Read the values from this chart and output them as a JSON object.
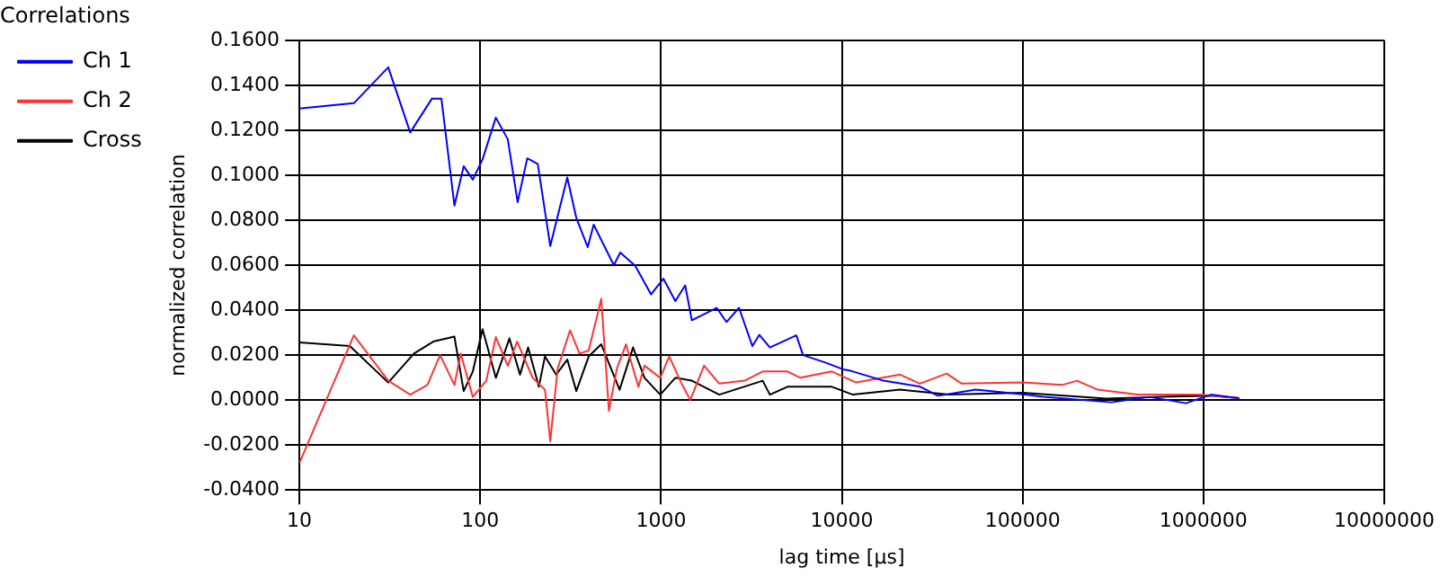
{
  "chart_data": {
    "type": "line",
    "title": "Correlations",
    "xlabel": "lag time [µs]",
    "ylabel": "normalized correlation",
    "log": "x",
    "xlim": [
      10,
      10000000
    ],
    "xticks": [
      10,
      100,
      1000,
      10000,
      100000,
      1000000,
      10000000
    ],
    "ylim": [
      -0.04,
      0.16
    ],
    "yticks": [
      {
        "value": -0.04,
        "label": "-0.0400"
      },
      {
        "value": -0.02,
        "label": "-0.0200"
      },
      {
        "value": 0,
        "label": "0.0000"
      },
      {
        "value": 0.02,
        "label": "0.0200"
      },
      {
        "value": 0.04,
        "label": "0.0400"
      },
      {
        "value": 0.06,
        "label": "0.0600"
      },
      {
        "value": 0.08,
        "label": "0.0800"
      },
      {
        "value": 0.1,
        "label": "0.1000"
      },
      {
        "value": 0.12,
        "label": "0.1200"
      },
      {
        "value": 0.14,
        "label": "0.1400"
      },
      {
        "value": 0.16,
        "label": "0.1600"
      }
    ],
    "grid": true,
    "legend": "top left",
    "marker": "none",
    "line_style": "solid",
    "series": [
      {
        "name": "Ch 1",
        "color": "#0000ff",
        "x": [
          10,
          20,
          31,
          41,
          54,
          61,
          72,
          81,
          91,
          103,
          122,
          142,
          161,
          182,
          208,
          244,
          303,
          340,
          393,
          424,
          548,
          595,
          720,
          880,
          1030,
          1200,
          1360,
          1480,
          2030,
          2300,
          2700,
          3200,
          3500,
          4000,
          5600,
          6100,
          8100,
          10300,
          11200,
          17000,
          27000,
          34000,
          55000,
          103000,
          130000,
          310000,
          500000,
          800000,
          1100000,
          1580000
        ],
        "values": [
          0.1296,
          0.132,
          0.148,
          0.119,
          0.134,
          0.134,
          0.0865,
          0.104,
          0.098,
          0.107,
          0.1256,
          0.116,
          0.088,
          0.1075,
          0.105,
          0.0685,
          0.099,
          0.081,
          0.068,
          0.078,
          0.06,
          0.0656,
          0.0597,
          0.047,
          0.054,
          0.044,
          0.051,
          0.0355,
          0.041,
          0.0347,
          0.041,
          0.024,
          0.029,
          0.0234,
          0.0288,
          0.02,
          0.0167,
          0.0135,
          0.013,
          0.0086,
          0.006,
          0.0019,
          0.0046,
          0.0024,
          0.0014,
          -0.001,
          0.0014,
          -0.0014,
          0.0024,
          0.0008
        ]
      },
      {
        "name": "Ch 2",
        "color": "#ff3333",
        "x": [
          10,
          20,
          31,
          41,
          51,
          60,
          72,
          78,
          91,
          108,
          122,
          142,
          160,
          195,
          228,
          244,
          268,
          314,
          354,
          398,
          467,
          515,
          570,
          640,
          750,
          810,
          990,
          1110,
          1300,
          1450,
          1730,
          2100,
          2900,
          3650,
          5000,
          5900,
          8800,
          12000,
          21000,
          27000,
          38000,
          46000,
          100000,
          165000,
          200000,
          260000,
          430000,
          950000,
          1580000
        ],
        "values": [
          -0.028,
          0.0288,
          0.0086,
          0.0024,
          0.0067,
          0.02,
          0.0067,
          0.0207,
          0.0014,
          0.0086,
          0.028,
          0.0153,
          0.026,
          0.0099,
          0.0046,
          -0.0183,
          0.014,
          0.031,
          0.0207,
          0.022,
          0.045,
          -0.0048,
          0.014,
          0.0248,
          0.0059,
          0.0153,
          0.0099,
          0.0194,
          0.0073,
          0,
          0.0153,
          0.0073,
          0.0086,
          0.0127,
          0.0127,
          0.0099,
          0.0127,
          0.0078,
          0.0113,
          0.0073,
          0.0118,
          0.0073,
          0.0078,
          0.0067,
          0.0086,
          0.0046,
          0.0024,
          0.0024,
          0.0008
        ]
      },
      {
        "name": "Cross",
        "color": "#000000",
        "x": [
          10,
          19,
          31,
          43,
          55,
          72,
          81,
          91,
          103,
          122,
          145,
          166,
          184,
          211,
          228,
          263,
          303,
          340,
          398,
          467,
          590,
          700,
          810,
          990,
          1200,
          1480,
          2100,
          3650,
          4000,
          5000,
          8800,
          11500,
          21000,
          39000,
          100000,
          290000,
          580000,
          1100000,
          1580000
        ],
        "values": [
          0.0256,
          0.024,
          0.0078,
          0.0207,
          0.026,
          0.0282,
          0.004,
          0.0127,
          0.0315,
          0.0099,
          0.0274,
          0.0113,
          0.0234,
          0.0059,
          0.0194,
          0.0113,
          0.018,
          0.004,
          0.0194,
          0.0248,
          0.0046,
          0.0234,
          0.0099,
          0.0024,
          0.0099,
          0.0086,
          0.0024,
          0.0086,
          0.0024,
          0.0059,
          0.0059,
          0.0024,
          0.0046,
          0.0024,
          0.0032,
          0.0006,
          0.0014,
          0.0019,
          0.0008
        ]
      }
    ]
  }
}
